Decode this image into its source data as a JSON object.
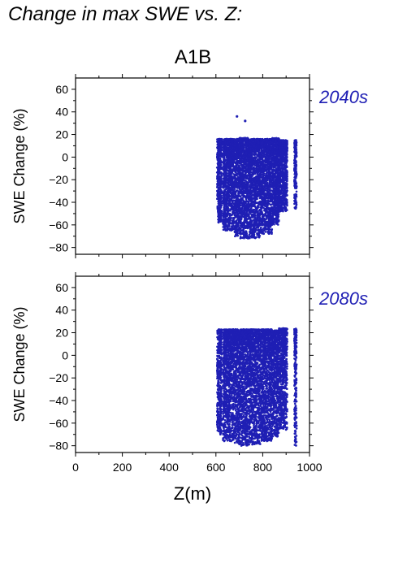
{
  "page_title": "Change in max SWE vs. Z:",
  "scenario_label": "A1B",
  "chart_data": [
    {
      "type": "scatter",
      "period_label": "2040s",
      "ylabel": "SWE Change (%)",
      "xlabel": "",
      "xlim": [
        0,
        1000
      ],
      "ylim": [
        -86,
        70
      ],
      "x_ticks": [
        0,
        200,
        400,
        600,
        800,
        1000
      ],
      "y_ticks": [
        60,
        40,
        20,
        0,
        -20,
        -40,
        -60,
        -80
      ],
      "color": "#1f1fb4",
      "point_ranges": [
        {
          "x": [
            605,
            625
          ],
          "y": [
            -58,
            16
          ]
        },
        {
          "x": [
            630,
            680
          ],
          "y": [
            -65,
            16
          ]
        },
        {
          "x": [
            680,
            700
          ],
          "y": [
            -71,
            16
          ]
        },
        {
          "x": [
            700,
            740
          ],
          "y": [
            -72,
            17
          ]
        },
        {
          "x": [
            740,
            790
          ],
          "y": [
            -72,
            16
          ]
        },
        {
          "x": [
            790,
            840
          ],
          "y": [
            -68,
            16
          ]
        },
        {
          "x": [
            840,
            870
          ],
          "y": [
            -60,
            17
          ]
        },
        {
          "x": [
            870,
            905
          ],
          "y": [
            -48,
            15
          ]
        },
        {
          "x": [
            935,
            945
          ],
          "y": [
            -46,
            15
          ]
        }
      ],
      "outliers": [
        {
          "x": 690,
          "y": 36
        },
        {
          "x": 725,
          "y": 32
        }
      ]
    },
    {
      "type": "scatter",
      "period_label": "2080s",
      "ylabel": "SWE Change (%)",
      "xlabel": "Z(m)",
      "xlim": [
        0,
        1000
      ],
      "ylim": [
        -86,
        70
      ],
      "x_ticks": [
        0,
        200,
        400,
        600,
        800,
        1000
      ],
      "y_ticks": [
        60,
        40,
        20,
        0,
        -20,
        -40,
        -60,
        -80
      ],
      "color": "#1f1fb4",
      "point_ranges": [
        {
          "x": [
            605,
            625
          ],
          "y": [
            -70,
            23
          ]
        },
        {
          "x": [
            630,
            680
          ],
          "y": [
            -76,
            23
          ]
        },
        {
          "x": [
            680,
            700
          ],
          "y": [
            -78,
            23
          ]
        },
        {
          "x": [
            700,
            740
          ],
          "y": [
            -80,
            23
          ]
        },
        {
          "x": [
            740,
            790
          ],
          "y": [
            -79,
            23
          ]
        },
        {
          "x": [
            790,
            840
          ],
          "y": [
            -76,
            23
          ]
        },
        {
          "x": [
            840,
            870
          ],
          "y": [
            -72,
            22
          ]
        },
        {
          "x": [
            870,
            905
          ],
          "y": [
            -66,
            24
          ]
        },
        {
          "x": [
            935,
            945
          ],
          "y": [
            -80,
            24
          ]
        }
      ],
      "outliers": []
    }
  ]
}
